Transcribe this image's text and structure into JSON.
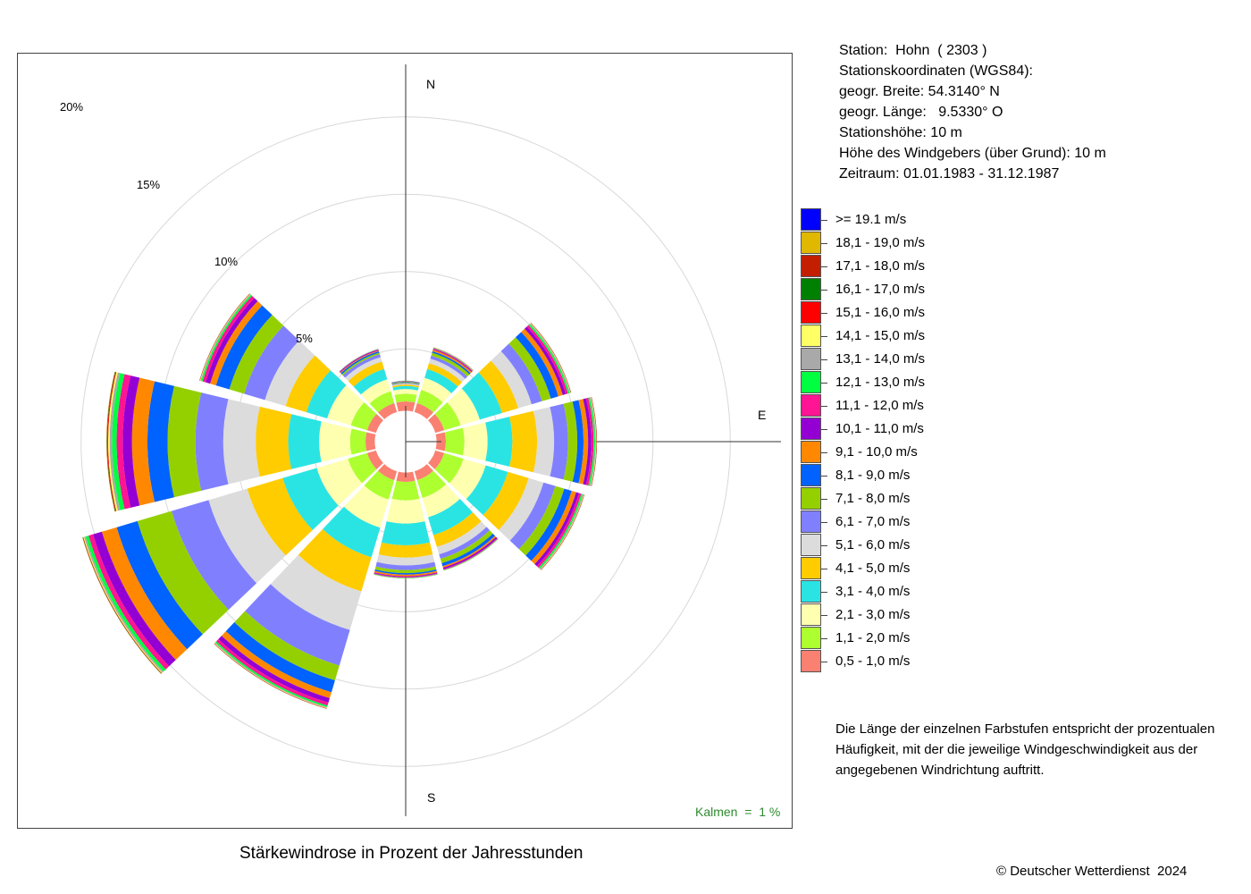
{
  "station_info": [
    "Station:  Hohn  ( 2303 )",
    "Stationskoordinaten (WGS84):",
    "geogr. Breite: 54.3140° N",
    "geogr. Länge:   9.5330° O",
    "Stationshöhe: 10 m",
    "Höhe des Windgebers (über Grund): 10 m",
    "Zeitraum: 01.01.1983 - 31.12.1987"
  ],
  "explanation": "Die Länge der einzelnen Farbstufen entspricht der prozentualen Häufigkeit, mit der die jeweilige Windgeschwindigkeit aus der angegebenen Windrichtung auftritt.",
  "copyright": "© Deutscher Wetterdienst  2024",
  "chart_data": {
    "type": "wind-rose",
    "title": "Stärkewindrose in Prozent der Jahresstunden",
    "calm_label": "Kalmen  =  1 %",
    "ring_labels": [
      "5%",
      "10%",
      "15%",
      "20%"
    ],
    "rings": [
      5,
      10,
      15,
      20
    ],
    "cardinals": [
      "N",
      "E",
      "S"
    ],
    "center_hole": 1,
    "directions": [
      0,
      30,
      60,
      90,
      120,
      150,
      180,
      210,
      240,
      270,
      300,
      330
    ],
    "speed_classes": [
      {
        "label": "0,5 - 1,0 m/s",
        "color": "#fa8072"
      },
      {
        "label": "1,1 - 2,0 m/s",
        "color": "#adff2f"
      },
      {
        "label": "2,1 - 3,0 m/s",
        "color": "#ffffb0"
      },
      {
        "label": "3,1 - 4,0 m/s",
        "color": "#2ae4e4"
      },
      {
        "label": "4,1 - 5,0 m/s",
        "color": "#ffcc00"
      },
      {
        "label": "5,1 - 6,0 m/s",
        "color": "#dcdcdc"
      },
      {
        "label": "6,1 - 7,0 m/s",
        "color": "#8080ff"
      },
      {
        "label": "7,1 - 8,0 m/s",
        "color": "#94d000"
      },
      {
        "label": "8,1 - 9,0 m/s",
        "color": "#0062ff"
      },
      {
        "label": "9,1 - 10,0 m/s",
        "color": "#ff8800"
      },
      {
        "label": "10,1 - 11,0 m/s",
        "color": "#9400d3"
      },
      {
        "label": "11,1 - 12,0 m/s",
        "color": "#ff1493"
      },
      {
        "label": "12,1 - 13,0 m/s",
        "color": "#00ff40"
      },
      {
        "label": "13,1 - 14,0 m/s",
        "color": "#a9a9a9"
      },
      {
        "label": "14,1 - 15,0 m/s",
        "color": "#ffff66"
      },
      {
        "label": "15,1 - 16,0 m/s",
        "color": "#ff0000"
      },
      {
        "label": "16,1 - 17,0 m/s",
        "color": "#008000"
      },
      {
        "label": "17,1 - 18,0 m/s",
        "color": "#c41e00"
      },
      {
        "label": "18,1 - 19,0 m/s",
        "color": "#e0b800"
      },
      {
        "label": ">= 19.1 m/s",
        "color": "#0000ff"
      }
    ],
    "series": [
      {
        "direction": 0,
        "values": [
          0.6,
          0.5,
          0.3,
          0.2,
          0.1,
          0.05,
          0.05,
          0.05,
          0.03,
          0.02,
          0.02,
          0.01,
          0.01,
          0,
          0,
          0,
          0,
          0,
          0,
          0
        ]
      },
      {
        "direction": 30,
        "values": [
          0.6,
          0.9,
          0.8,
          0.6,
          0.4,
          0.3,
          0.2,
          0.2,
          0.1,
          0.1,
          0.05,
          0.05,
          0.03,
          0.02,
          0.01,
          0.01,
          0,
          0,
          0,
          0
        ]
      },
      {
        "direction": 60,
        "values": [
          0.6,
          1.1,
          1.3,
          1.5,
          1.1,
          0.9,
          0.7,
          0.6,
          0.5,
          0.3,
          0.2,
          0.15,
          0.1,
          0.05,
          0.03,
          0.02,
          0.01,
          0.01,
          0,
          0
        ]
      },
      {
        "direction": 90,
        "values": [
          0.6,
          1.2,
          1.5,
          1.6,
          1.6,
          1.1,
          0.9,
          0.6,
          0.4,
          0.3,
          0.2,
          0.15,
          0.1,
          0.05,
          0.03,
          0.02,
          0.01,
          0.01,
          0,
          0
        ]
      },
      {
        "direction": 120,
        "values": [
          0.6,
          1.3,
          1.5,
          1.5,
          1.4,
          1.0,
          0.8,
          0.6,
          0.5,
          0.3,
          0.2,
          0.15,
          0.1,
          0.05,
          0.03,
          0.02,
          0.01,
          0.01,
          0,
          0
        ]
      },
      {
        "direction": 150,
        "values": [
          0.6,
          1.2,
          1.3,
          1.2,
          0.8,
          0.5,
          0.3,
          0.3,
          0.2,
          0.1,
          0.1,
          0.05,
          0.03,
          0.02,
          0.01,
          0,
          0,
          0,
          0,
          0
        ]
      },
      {
        "direction": 180,
        "values": [
          0.6,
          1.2,
          1.5,
          1.4,
          0.8,
          0.5,
          0.3,
          0.2,
          0.1,
          0.1,
          0.05,
          0.05,
          0.03,
          0.02,
          0.01,
          0,
          0,
          0,
          0,
          0
        ]
      },
      {
        "direction": 210,
        "values": [
          0.6,
          1.3,
          1.9,
          2.0,
          2.3,
          2.6,
          2.4,
          1.0,
          0.8,
          0.4,
          0.3,
          0.2,
          0.1,
          0.05,
          0.03,
          0.02,
          0.01,
          0.01,
          0,
          0
        ]
      },
      {
        "direction": 240,
        "values": [
          0.6,
          1.3,
          2.1,
          2.3,
          2.4,
          2.6,
          2.5,
          2.3,
          1.4,
          1.0,
          0.6,
          0.3,
          0.2,
          0.1,
          0.05,
          0.03,
          0.02,
          0.01,
          0.01,
          0
        ]
      },
      {
        "direction": 270,
        "values": [
          0.6,
          1.0,
          2.0,
          2.0,
          2.1,
          2.1,
          1.8,
          1.8,
          1.3,
          1.0,
          0.6,
          0.4,
          0.3,
          0.15,
          0.1,
          0.05,
          0.03,
          0.02,
          0.01,
          0
        ]
      },
      {
        "direction": 300,
        "values": [
          0.6,
          1.1,
          1.6,
          1.4,
          1.4,
          1.4,
          1.4,
          1.0,
          0.9,
          0.4,
          0.3,
          0.2,
          0.1,
          0.05,
          0.03,
          0.02,
          0.01,
          0.01,
          0,
          0
        ]
      },
      {
        "direction": 330,
        "values": [
          0.6,
          0.8,
          0.8,
          0.7,
          0.5,
          0.3,
          0.2,
          0.1,
          0.1,
          0.05,
          0.05,
          0.03,
          0.02,
          0.01,
          0,
          0,
          0,
          0,
          0,
          0
        ]
      }
    ]
  }
}
